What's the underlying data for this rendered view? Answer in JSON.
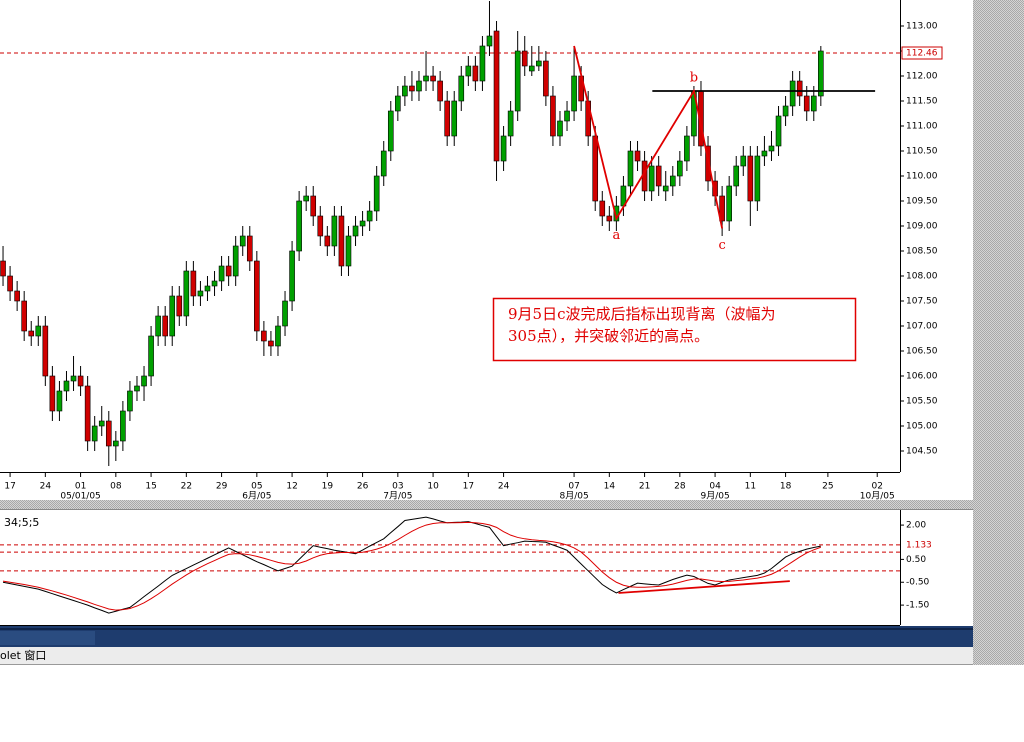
{
  "chart_data": [
    {
      "type": "candlestick",
      "xlim": [
        -0.43,
        127.23
      ],
      "ylim": [
        104.12,
        113.52
      ],
      "yticks": [
        {
          "value": 104.5,
          "label": "104.50"
        },
        {
          "value": 105,
          "label": "105.00"
        },
        {
          "value": 105.5,
          "label": "105.50"
        },
        {
          "value": 106,
          "label": "106.00"
        },
        {
          "value": 106.5,
          "label": "106.50"
        },
        {
          "value": 107,
          "label": "107.00"
        },
        {
          "value": 107.5,
          "label": "107.50"
        },
        {
          "value": 108,
          "label": "108.00"
        },
        {
          "value": 108.5,
          "label": "108.50"
        },
        {
          "value": 109,
          "label": "109.00"
        },
        {
          "value": 109.5,
          "label": "109.50"
        },
        {
          "value": 110,
          "label": "110.00"
        },
        {
          "value": 110.5,
          "label": "110.50"
        },
        {
          "value": 111,
          "label": "111.00"
        },
        {
          "value": 111.5,
          "label": "111.50"
        },
        {
          "value": 112,
          "label": "112.00"
        },
        {
          "value": 112.5,
          "label": "112.50"
        },
        {
          "value": 113,
          "label": "113.00"
        }
      ],
      "xticks": [
        {
          "value": 1,
          "label": "17"
        },
        {
          "value": 6,
          "label": "24"
        },
        {
          "value": 11,
          "label": "01"
        },
        {
          "value": 16,
          "label": "08"
        },
        {
          "value": 21,
          "label": "15"
        },
        {
          "value": 26,
          "label": "22"
        },
        {
          "value": 31,
          "label": "29"
        },
        {
          "value": 36,
          "label": "05"
        },
        {
          "value": 41,
          "label": "12"
        },
        {
          "value": 46,
          "label": "19"
        },
        {
          "value": 51,
          "label": "26"
        },
        {
          "value": 56,
          "label": "03"
        },
        {
          "value": 61,
          "label": "10"
        },
        {
          "value": 66,
          "label": "17"
        },
        {
          "value": 71,
          "label": "24"
        },
        {
          "value": 81,
          "label": "07"
        },
        {
          "value": 86,
          "label": "14"
        },
        {
          "value": 91,
          "label": "21"
        },
        {
          "value": 96,
          "label": "28"
        },
        {
          "value": 101,
          "label": "04"
        },
        {
          "value": 106,
          "label": "11"
        },
        {
          "value": 111,
          "label": "18"
        },
        {
          "value": 117,
          "label": "25"
        },
        {
          "value": 124,
          "label": "02"
        }
      ],
      "xsublabels": [
        {
          "value": 11,
          "label": "05/01/05"
        },
        {
          "value": 36,
          "label": "6月/05"
        },
        {
          "value": 56,
          "label": "7月/05"
        },
        {
          "value": 81,
          "label": "8月/05"
        },
        {
          "value": 101,
          "label": "9月/05"
        },
        {
          "value": 124,
          "label": "10月/05"
        }
      ],
      "up_color": "#00a000",
      "down_color": "#d00000",
      "candles": [
        [
          108.3,
          108.6,
          107.8,
          108.0
        ],
        [
          108.0,
          108.2,
          107.5,
          107.7
        ],
        [
          107.7,
          107.9,
          107.3,
          107.5
        ],
        [
          107.5,
          107.7,
          106.7,
          106.9
        ],
        [
          106.9,
          107.1,
          106.6,
          106.8
        ],
        [
          106.8,
          107.2,
          106.6,
          107.0
        ],
        [
          107.0,
          107.2,
          105.8,
          106.0
        ],
        [
          106.0,
          106.2,
          105.1,
          105.3
        ],
        [
          105.3,
          105.9,
          105.1,
          105.7
        ],
        [
          105.7,
          106.1,
          105.5,
          105.9
        ],
        [
          105.9,
          106.4,
          105.7,
          106.0
        ],
        [
          106.0,
          106.2,
          105.6,
          105.8
        ],
        [
          105.8,
          106.0,
          104.5,
          104.7
        ],
        [
          104.7,
          105.2,
          104.5,
          105.0
        ],
        [
          105.0,
          105.4,
          104.8,
          105.1
        ],
        [
          105.1,
          105.3,
          104.2,
          104.6
        ],
        [
          104.6,
          104.9,
          104.3,
          104.7
        ],
        [
          104.7,
          105.5,
          104.5,
          105.3
        ],
        [
          105.3,
          105.9,
          105.1,
          105.7
        ],
        [
          105.7,
          106.0,
          105.5,
          105.8
        ],
        [
          105.8,
          106.2,
          105.5,
          106.0
        ],
        [
          106.0,
          107.0,
          105.8,
          106.8
        ],
        [
          106.8,
          107.4,
          106.6,
          107.2
        ],
        [
          107.2,
          107.4,
          106.6,
          106.8
        ],
        [
          106.8,
          107.8,
          106.6,
          107.6
        ],
        [
          107.6,
          107.8,
          107.0,
          107.2
        ],
        [
          107.2,
          108.3,
          107.0,
          108.1
        ],
        [
          108.1,
          108.3,
          107.4,
          107.6
        ],
        [
          107.6,
          107.9,
          107.4,
          107.7
        ],
        [
          107.7,
          108.0,
          107.5,
          107.8
        ],
        [
          107.8,
          108.1,
          107.6,
          107.9
        ],
        [
          107.9,
          108.4,
          107.7,
          108.2
        ],
        [
          108.2,
          108.4,
          107.8,
          108.0
        ],
        [
          108.0,
          108.8,
          107.8,
          108.6
        ],
        [
          108.6,
          109.0,
          108.4,
          108.8
        ],
        [
          108.8,
          109.0,
          108.1,
          108.3
        ],
        [
          108.3,
          108.5,
          106.7,
          106.9
        ],
        [
          106.9,
          107.1,
          106.4,
          106.7
        ],
        [
          106.7,
          106.9,
          106.4,
          106.6
        ],
        [
          106.6,
          107.2,
          106.4,
          107.0
        ],
        [
          107.0,
          107.7,
          106.8,
          107.5
        ],
        [
          107.5,
          108.7,
          107.3,
          108.5
        ],
        [
          108.5,
          109.7,
          108.3,
          109.5
        ],
        [
          109.5,
          109.8,
          109.3,
          109.6
        ],
        [
          109.6,
          109.8,
          109.0,
          109.2
        ],
        [
          109.2,
          109.4,
          108.6,
          108.8
        ],
        [
          108.8,
          109.0,
          108.4,
          108.6
        ],
        [
          108.6,
          109.4,
          108.4,
          109.2
        ],
        [
          109.2,
          109.4,
          108.0,
          108.2
        ],
        [
          108.2,
          109.0,
          108.0,
          108.8
        ],
        [
          108.8,
          109.2,
          108.6,
          109.0
        ],
        [
          109.0,
          109.3,
          108.8,
          109.1
        ],
        [
          109.1,
          109.5,
          108.9,
          109.3
        ],
        [
          109.3,
          110.2,
          109.1,
          110.0
        ],
        [
          110.0,
          110.7,
          109.8,
          110.5
        ],
        [
          110.5,
          111.5,
          110.3,
          111.3
        ],
        [
          111.3,
          111.8,
          111.1,
          111.6
        ],
        [
          111.6,
          112.0,
          111.4,
          111.8
        ],
        [
          111.8,
          112.1,
          111.5,
          111.7
        ],
        [
          111.7,
          112.1,
          111.5,
          111.9
        ],
        [
          111.9,
          112.5,
          111.7,
          112.0
        ],
        [
          112.0,
          112.2,
          111.7,
          111.9
        ],
        [
          111.9,
          112.1,
          111.3,
          111.5
        ],
        [
          111.5,
          111.7,
          110.6,
          110.8
        ],
        [
          110.8,
          111.7,
          110.6,
          111.5
        ],
        [
          111.5,
          112.2,
          111.3,
          112.0
        ],
        [
          112.0,
          112.4,
          111.8,
          112.2
        ],
        [
          112.2,
          112.4,
          111.7,
          111.9
        ],
        [
          111.9,
          112.8,
          111.7,
          112.6
        ],
        [
          112.6,
          113.5,
          112.4,
          112.8
        ],
        [
          112.9,
          113.1,
          109.9,
          110.3
        ],
        [
          110.3,
          111.0,
          110.1,
          110.8
        ],
        [
          110.8,
          111.5,
          110.6,
          111.3
        ],
        [
          111.3,
          112.9,
          111.1,
          112.5
        ],
        [
          112.5,
          112.8,
          112.0,
          112.2
        ],
        [
          112.1,
          112.6,
          112.0,
          112.2
        ],
        [
          112.2,
          112.6,
          112.1,
          112.3
        ],
        [
          112.3,
          112.5,
          111.4,
          111.6
        ],
        [
          111.6,
          111.8,
          110.6,
          110.8
        ],
        [
          110.8,
          111.3,
          110.6,
          111.1
        ],
        [
          111.1,
          111.5,
          110.9,
          111.3
        ],
        [
          111.3,
          112.6,
          111.1,
          112.0
        ],
        [
          112.0,
          112.2,
          111.3,
          111.5
        ],
        [
          111.5,
          111.7,
          110.6,
          110.8
        ],
        [
          110.8,
          111.0,
          109.3,
          109.5
        ],
        [
          109.5,
          109.7,
          109.0,
          109.2
        ],
        [
          109.2,
          109.4,
          108.9,
          109.1
        ],
        [
          109.1,
          109.6,
          108.9,
          109.4
        ],
        [
          109.4,
          110.0,
          109.2,
          109.8
        ],
        [
          109.8,
          110.7,
          109.6,
          110.5
        ],
        [
          110.5,
          110.7,
          110.1,
          110.3
        ],
        [
          110.3,
          110.5,
          109.5,
          109.7
        ],
        [
          109.7,
          110.4,
          109.5,
          110.2
        ],
        [
          110.2,
          110.4,
          109.6,
          109.8
        ],
        [
          109.7,
          110.1,
          109.5,
          109.8
        ],
        [
          109.8,
          110.2,
          109.6,
          110.0
        ],
        [
          110.0,
          110.5,
          109.8,
          110.3
        ],
        [
          110.3,
          111.0,
          110.1,
          110.8
        ],
        [
          110.8,
          111.8,
          110.6,
          111.7
        ],
        [
          111.7,
          111.9,
          110.4,
          110.6
        ],
        [
          110.6,
          110.8,
          109.7,
          109.9
        ],
        [
          109.9,
          110.1,
          109.4,
          109.6
        ],
        [
          109.6,
          109.8,
          108.8,
          109.1
        ],
        [
          109.1,
          110.0,
          108.9,
          109.8
        ],
        [
          109.8,
          110.4,
          109.6,
          110.2
        ],
        [
          110.2,
          110.6,
          110.0,
          110.4
        ],
        [
          110.4,
          110.6,
          109.0,
          109.5
        ],
        [
          109.5,
          110.6,
          109.3,
          110.4
        ],
        [
          110.4,
          110.8,
          110.2,
          110.5
        ],
        [
          110.5,
          110.9,
          110.3,
          110.6
        ],
        [
          110.6,
          111.4,
          110.4,
          111.2
        ],
        [
          111.2,
          111.6,
          111.0,
          111.4
        ],
        [
          111.4,
          112.1,
          111.2,
          111.9
        ],
        [
          111.9,
          112.1,
          111.4,
          111.6
        ],
        [
          111.6,
          111.8,
          111.1,
          111.3
        ],
        [
          111.3,
          111.8,
          111.1,
          111.6
        ],
        [
          111.6,
          112.6,
          111.4,
          112.5
        ]
      ],
      "level": 112.46,
      "level_color": "#cc0000",
      "hline": {
        "y": 111.7,
        "x": [
          92.1,
          123.7
        ],
        "color": "#000000"
      },
      "wave": {
        "x": [
          81,
          87,
          98,
          102
        ],
        "y": [
          112.6,
          109.15,
          111.7,
          108.95
        ],
        "labels": [
          "a",
          "b",
          "c"
        ],
        "color": "#e00000"
      },
      "annotation": [
        "9月5日c波完成后指标出现背离（波幅为",
        "305点），并突破邻近的高点。"
      ]
    },
    {
      "type": "line",
      "title": "34;5;5",
      "xlim": [
        -0.43,
        127.23
      ],
      "ylim": [
        -2.37,
        2.66
      ],
      "yticks": [
        {
          "value": 2,
          "label": "2.00"
        },
        {
          "value": 0.5,
          "label": "0.50"
        },
        {
          "value": -0.5,
          "label": "-0.50"
        },
        {
          "value": -1.5,
          "label": "-1.50"
        }
      ],
      "levels": [
        1.133,
        0.82,
        0
      ],
      "level_color": "#cc0000",
      "series": [
        {
          "color": "#000000",
          "values": [
            -0.5,
            -0.56,
            -0.62,
            -0.68,
            -0.74,
            -0.8,
            -0.9,
            -1.0,
            -1.1,
            -1.2,
            -1.3,
            -1.4,
            -1.5,
            -1.62,
            -1.73,
            -1.85,
            -1.77,
            -1.68,
            -1.6,
            -1.37,
            -1.13,
            -0.9,
            -0.67,
            -0.43,
            -0.2,
            -0.05,
            0.1,
            0.25,
            0.4,
            0.55,
            0.7,
            0.85,
            1.0,
            0.85,
            0.7,
            0.55,
            0.4,
            0.27,
            0.13,
            0.0,
            0.1,
            0.2,
            0.5,
            0.8,
            1.1,
            1.03,
            0.97,
            0.9,
            0.85,
            0.8,
            0.75,
            0.91,
            1.08,
            1.24,
            1.4,
            1.67,
            1.93,
            2.2,
            2.25,
            2.3,
            2.35,
            2.27,
            2.18,
            2.1,
            2.12,
            2.13,
            2.15,
            2.07,
            1.98,
            1.9,
            1.5,
            1.1,
            1.17,
            1.23,
            1.3,
            1.28,
            1.27,
            1.25,
            1.13,
            1.02,
            0.9,
            0.6,
            0.3,
            0.0,
            -0.3,
            -0.6,
            -0.8,
            -0.97,
            -0.82,
            -0.68,
            -0.54,
            -0.57,
            -0.6,
            -0.62,
            -0.5,
            -0.38,
            -0.28,
            -0.19,
            -0.25,
            -0.4,
            -0.55,
            -0.62,
            -0.5,
            -0.4,
            -0.35,
            -0.3,
            -0.25,
            -0.2,
            -0.1,
            0.1,
            0.35,
            0.6,
            0.75,
            0.85,
            0.95,
            1.02,
            1.08
          ]
        },
        {
          "color": "#dd0000",
          "values": [
            -0.45,
            -0.5,
            -0.55,
            -0.6,
            -0.66,
            -0.72,
            -0.8,
            -0.88,
            -0.97,
            -1.06,
            -1.16,
            -1.26,
            -1.36,
            -1.47,
            -1.57,
            -1.67,
            -1.72,
            -1.7,
            -1.65,
            -1.54,
            -1.4,
            -1.22,
            -1.02,
            -0.8,
            -0.58,
            -0.38,
            -0.18,
            0.0,
            0.16,
            0.31,
            0.45,
            0.59,
            0.72,
            0.75,
            0.74,
            0.7,
            0.63,
            0.55,
            0.46,
            0.37,
            0.31,
            0.29,
            0.33,
            0.43,
            0.57,
            0.68,
            0.75,
            0.78,
            0.8,
            0.8,
            0.79,
            0.81,
            0.87,
            0.95,
            1.05,
            1.19,
            1.36,
            1.55,
            1.73,
            1.88,
            2.0,
            2.07,
            2.1,
            2.1,
            2.1,
            2.11,
            2.12,
            2.1,
            2.07,
            2.01,
            1.9,
            1.71,
            1.56,
            1.46,
            1.4,
            1.36,
            1.33,
            1.31,
            1.27,
            1.21,
            1.13,
            1.0,
            0.82,
            0.55,
            0.25,
            -0.05,
            -0.3,
            -0.5,
            -0.63,
            -0.7,
            -0.72,
            -0.72,
            -0.7,
            -0.68,
            -0.64,
            -0.58,
            -0.5,
            -0.42,
            -0.36,
            -0.36,
            -0.4,
            -0.45,
            -0.47,
            -0.46,
            -0.43,
            -0.4,
            -0.36,
            -0.32,
            -0.25,
            -0.15,
            0.0,
            0.2,
            0.4,
            0.6,
            0.78,
            0.92,
            1.03
          ]
        }
      ],
      "trend": {
        "x": [
          87.3,
          111.6
        ],
        "y": [
          -0.97,
          -0.45
        ],
        "color": "#e00000"
      }
    }
  ],
  "ui": {
    "menu": "olet 窗口"
  }
}
